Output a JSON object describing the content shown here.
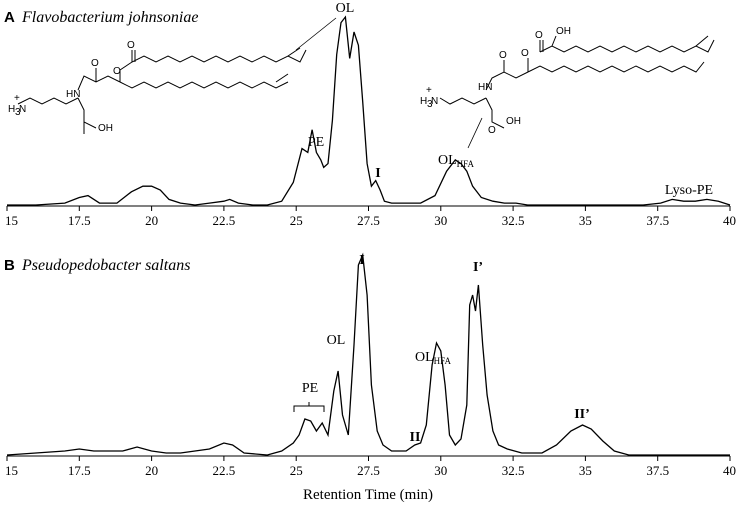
{
  "chart_data": [
    {
      "type": "line",
      "panel": "A",
      "title": "Flavobacterium johnsoniae",
      "xlabel": "",
      "ylabel": "",
      "xlim": [
        15,
        40
      ],
      "x_ticks": [
        15,
        17.5,
        20,
        22.5,
        25,
        27.5,
        30,
        32.5,
        35,
        37.5,
        40
      ],
      "x_tick_labels": [
        "15",
        "17.5",
        "20",
        "22.5",
        "25",
        "27.5",
        "30",
        "32.5",
        "35",
        "37.5",
        "40"
      ],
      "series": [
        {
          "x": [
            15,
            16,
            17,
            17.5,
            17.8,
            18.2,
            18.8,
            19.3,
            19.7,
            20.0,
            20.3,
            20.6,
            21.0,
            21.5,
            22.0,
            22.5,
            22.7,
            23.0,
            23.5,
            24.0,
            24.5,
            24.9,
            25.2,
            25.4,
            25.55,
            25.7,
            25.85,
            25.95,
            26.1,
            26.25,
            26.4,
            26.55,
            26.7,
            26.85,
            27.0,
            27.15,
            27.3,
            27.45,
            27.6,
            27.75,
            27.9,
            28.05,
            28.3,
            28.8,
            29.3,
            29.8,
            30.2,
            30.5,
            30.7,
            30.9,
            31.1,
            31.4,
            31.8,
            32.2,
            32.6,
            33.0,
            34,
            35,
            36,
            37,
            37.6,
            38.0,
            38.4,
            38.8,
            39.2,
            39.6,
            40
          ],
          "y": [
            0.0,
            0.0,
            0.01,
            0.04,
            0.05,
            0.01,
            0.01,
            0.07,
            0.1,
            0.1,
            0.08,
            0.03,
            0.01,
            0.0,
            0.01,
            0.02,
            0.03,
            0.01,
            0.0,
            0.0,
            0.02,
            0.12,
            0.3,
            0.28,
            0.4,
            0.28,
            0.24,
            0.2,
            0.22,
            0.45,
            0.8,
            0.97,
            1.0,
            0.78,
            0.92,
            0.85,
            0.55,
            0.22,
            0.1,
            0.13,
            0.08,
            0.02,
            0.01,
            0.01,
            0.01,
            0.05,
            0.18,
            0.24,
            0.22,
            0.18,
            0.1,
            0.04,
            0.02,
            0.01,
            0.01,
            0.0,
            0.0,
            0.0,
            0.0,
            0.0,
            0.01,
            0.03,
            0.02,
            0.02,
            0.03,
            0.02,
            0.0
          ]
        }
      ],
      "annotations": [
        {
          "text": "OL",
          "x": 26.7,
          "bold": false
        },
        {
          "text": "PE",
          "x": 25.6,
          "bold": false
        },
        {
          "text": "I",
          "x": 27.8,
          "bold": true
        },
        {
          "text": "OL",
          "sub": "HFA",
          "x": 30.6,
          "bold": false
        },
        {
          "text": "Lyso-PE",
          "x": 39.2,
          "bold": false
        }
      ]
    },
    {
      "type": "line",
      "panel": "B",
      "title": "Pseudopedobacter saltans",
      "xlabel": "Retention Time (min)",
      "ylabel": "",
      "xlim": [
        15,
        40
      ],
      "x_ticks": [
        15,
        17.5,
        20,
        22.5,
        25,
        27.5,
        30,
        32.5,
        35,
        37.5,
        40
      ],
      "x_tick_labels": [
        "15",
        "17.5",
        "20",
        "22.5",
        "25",
        "27.5",
        "30",
        "32.5",
        "35",
        "37.5",
        "40"
      ],
      "series": [
        {
          "x": [
            15,
            16,
            17,
            17.5,
            18,
            18.5,
            19,
            19.5,
            20,
            20.5,
            21,
            21.5,
            22,
            22.5,
            22.8,
            23.2,
            24,
            24.5,
            24.9,
            25.1,
            25.3,
            25.5,
            25.7,
            25.9,
            26.1,
            26.3,
            26.45,
            26.6,
            26.8,
            27.0,
            27.15,
            27.3,
            27.45,
            27.6,
            27.8,
            28.0,
            28.3,
            28.8,
            29.1,
            29.3,
            29.5,
            29.7,
            29.85,
            30.0,
            30.15,
            30.3,
            30.5,
            30.7,
            30.9,
            31.0,
            31.1,
            31.2,
            31.3,
            31.45,
            31.6,
            31.8,
            32.0,
            32.3,
            32.8,
            33.5,
            34.0,
            34.5,
            34.9,
            35.2,
            35.6,
            36.0,
            36.5,
            38,
            40
          ],
          "y": [
            0.0,
            0.01,
            0.02,
            0.03,
            0.02,
            0.02,
            0.02,
            0.04,
            0.02,
            0.01,
            0.01,
            0.02,
            0.03,
            0.06,
            0.05,
            0.01,
            0.0,
            0.02,
            0.06,
            0.1,
            0.18,
            0.17,
            0.12,
            0.16,
            0.1,
            0.32,
            0.42,
            0.2,
            0.1,
            0.55,
            0.95,
            1.0,
            0.8,
            0.35,
            0.12,
            0.05,
            0.02,
            0.02,
            0.05,
            0.06,
            0.15,
            0.45,
            0.56,
            0.52,
            0.35,
            0.1,
            0.05,
            0.08,
            0.25,
            0.75,
            0.8,
            0.72,
            0.85,
            0.55,
            0.3,
            0.12,
            0.05,
            0.03,
            0.01,
            0.01,
            0.05,
            0.12,
            0.15,
            0.13,
            0.07,
            0.02,
            0.0,
            0.0,
            0.0
          ]
        }
      ],
      "annotations": [
        {
          "text": "I",
          "x": 27.3,
          "bold": true
        },
        {
          "text": "I’",
          "x": 31.2,
          "bold": true
        },
        {
          "text": "OL",
          "x": 26.4,
          "bold": false
        },
        {
          "text": "OL",
          "sub": "HFA",
          "x": 29.9,
          "bold": false
        },
        {
          "text": "PE",
          "x": 25.7,
          "bold": false
        },
        {
          "text": "II",
          "x": 29.2,
          "bold": true
        },
        {
          "text": "II’",
          "x": 35.0,
          "bold": true
        }
      ]
    }
  ],
  "structure_1": {
    "ammonium": "H",
    "ammonium_sub": "3",
    "ammonium_n": "N",
    "charge": "+",
    "nh": "HN",
    "oh": "OH",
    "o_labels": [
      "O",
      "O",
      "O"
    ]
  },
  "structure_2": {
    "ammonium": "H",
    "ammonium_sub": "3",
    "ammonium_n": "N",
    "charge": "+",
    "nh": "HN",
    "oh": "OH",
    "oh_hfa": "OH",
    "o_labels": [
      "O",
      "O",
      "O",
      "O"
    ]
  },
  "colors": {
    "line": "#000000",
    "background": "#ffffff"
  }
}
